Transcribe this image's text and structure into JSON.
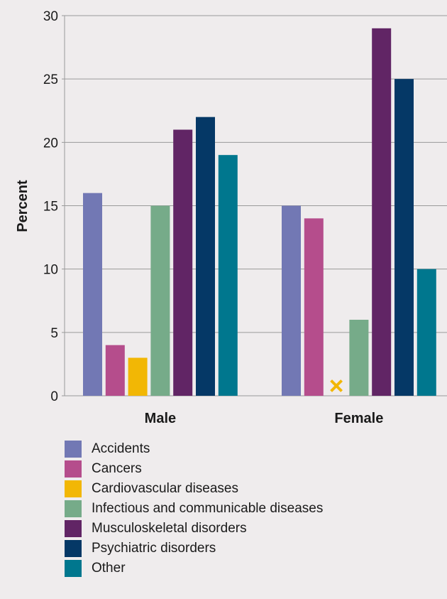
{
  "chart_data": {
    "type": "bar",
    "ylabel": "Percent",
    "ylim": [
      0,
      30
    ],
    "yticks": [
      0,
      5,
      10,
      15,
      20,
      25,
      30
    ],
    "grid": true,
    "legend_position": "bottom",
    "categories": [
      "Male",
      "Female"
    ],
    "series": [
      {
        "name": "Accidents",
        "color": "#7278b4",
        "values": [
          16,
          15
        ]
      },
      {
        "name": "Cancers",
        "color": "#b54d8c",
        "values": [
          4,
          14
        ]
      },
      {
        "name": "Cardiovascular diseases",
        "color": "#f2b705",
        "values": [
          3,
          null
        ]
      },
      {
        "name": "Infectious and communicable diseases",
        "color": "#76ab89",
        "values": [
          15,
          6
        ]
      },
      {
        "name": "Musculoskeletal disorders",
        "color": "#612565",
        "values": [
          21,
          29
        ]
      },
      {
        "name": "Psychiatric disorders",
        "color": "#053866",
        "values": [
          22,
          25
        ]
      },
      {
        "name": "Other",
        "color": "#00778e",
        "values": [
          19,
          10
        ]
      }
    ],
    "annotations": [
      {
        "category": "Female",
        "series": "Cardiovascular diseases",
        "marker": "x",
        "color": "#f2b705"
      }
    ]
  }
}
